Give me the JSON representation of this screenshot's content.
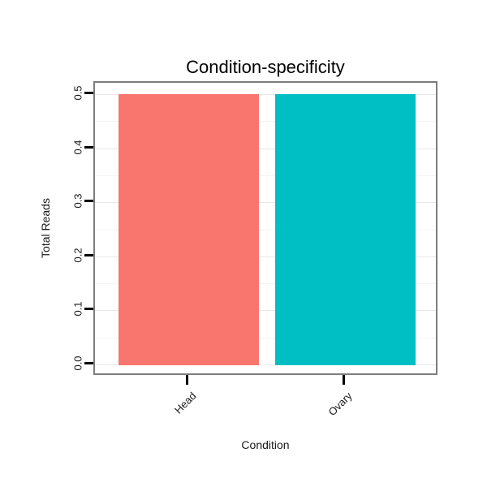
{
  "chart_data": {
    "type": "bar",
    "title": "Condition-specificity",
    "categories": [
      "Head",
      "Ovary"
    ],
    "values": [
      0.5,
      0.5
    ],
    "bar_colors": [
      "#F8766D",
      "#00BFC4"
    ],
    "xlabel": "Condition",
    "ylabel": "Total Reads",
    "ylim": [
      0,
      0.5
    ],
    "y_ticks": [
      0.0,
      0.1,
      0.2,
      0.3,
      0.4,
      0.5
    ],
    "y_tick_labels": [
      "0.0",
      "0.1",
      "0.2",
      "0.3",
      "0.4",
      "0.5"
    ],
    "grid": true,
    "legend": "none"
  },
  "colors": {
    "background": "#ffffff",
    "panel_border": "#7d7d7d",
    "grid_major": "#e8e8e8",
    "grid_minor": "#f4f4f4",
    "tick": "#000000",
    "text": "#1a1a1a"
  }
}
